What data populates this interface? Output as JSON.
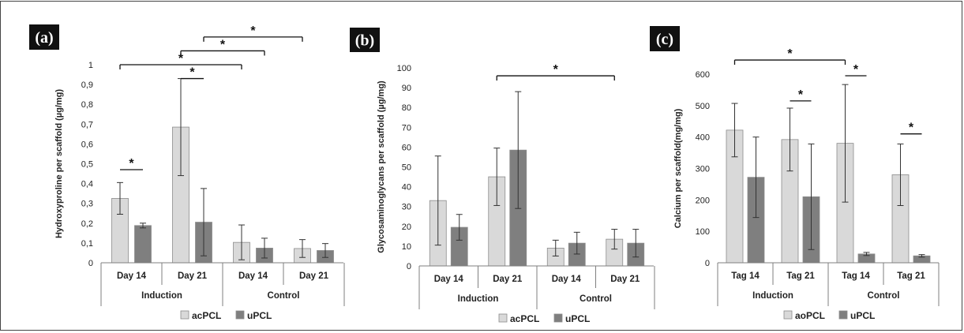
{
  "colors": {
    "series1": "#d9d9d9",
    "series2": "#7f7f7f",
    "bar_stroke": "#8c8c8c",
    "axis": "#7f7f7f",
    "label_box": "#111111"
  },
  "chart_data": [
    {
      "type": "bar",
      "panel_label": "(a)",
      "ylabel": "Hydroxyproline per scaffold (µg/mg)",
      "ylim": [
        0,
        1
      ],
      "yticks": [
        "0",
        "0,1",
        "0,2",
        "0,3",
        "0,4",
        "0,5",
        "0,6",
        "0,7",
        "0,8",
        "0,9",
        "1"
      ],
      "categories": [
        "Day 14",
        "Day 21",
        "Day 14",
        "Day 21"
      ],
      "groups": [
        {
          "label": "Induction",
          "categories": [
            0,
            1
          ]
        },
        {
          "label": "Control",
          "categories": [
            2,
            3
          ]
        }
      ],
      "series": [
        {
          "name": "acPCL",
          "values": [
            0.325,
            0.685,
            0.103,
            0.072
          ],
          "errors": [
            0.08,
            0.245,
            0.088,
            0.045
          ]
        },
        {
          "name": "uPCL",
          "values": [
            0.188,
            0.205,
            0.074,
            0.062
          ],
          "errors": [
            0.012,
            0.17,
            0.05,
            0.035
          ]
        }
      ],
      "significance": [
        {
          "from": [
            0,
            0
          ],
          "to": [
            0,
            1
          ],
          "y": 0.47,
          "label": "*"
        },
        {
          "from": [
            1,
            0
          ],
          "to": [
            1,
            1
          ],
          "y": 0.93,
          "label": "*"
        },
        {
          "from": [
            0,
            0
          ],
          "to": [
            2,
            0
          ],
          "y": 1.0,
          "label": "*"
        },
        {
          "from": [
            1,
            0
          ],
          "to": [
            2,
            1
          ],
          "y": 1.07,
          "label": "*"
        },
        {
          "from": [
            1,
            1
          ],
          "to": [
            3,
            0
          ],
          "y": 1.14,
          "label": "*"
        }
      ],
      "legend_position": "bottom"
    },
    {
      "type": "bar",
      "panel_label": "(b)",
      "ylabel": "Glycosaminoglycans per scaffold (µg/mg)",
      "ylim": [
        0,
        100
      ],
      "yticks": [
        "0",
        "10",
        "20",
        "30",
        "40",
        "50",
        "60",
        "70",
        "80",
        "90",
        "100"
      ],
      "categories": [
        "Day 14",
        "Day 21",
        "Day 14",
        "Day 21"
      ],
      "groups": [
        {
          "label": "Induction",
          "categories": [
            0,
            1
          ]
        },
        {
          "label": "Control",
          "categories": [
            2,
            3
          ]
        }
      ],
      "series": [
        {
          "name": "acPCL",
          "values": [
            33,
            45,
            9,
            13.5
          ],
          "errors": [
            22.5,
            14.5,
            4,
            5
          ]
        },
        {
          "name": "uPCL",
          "values": [
            19.5,
            58.5,
            11.5,
            11.5
          ],
          "errors": [
            6.5,
            29.5,
            5.5,
            7
          ]
        }
      ],
      "significance": [
        {
          "from": [
            1,
            0
          ],
          "to": [
            3,
            0
          ],
          "y": 96,
          "label": "*"
        }
      ],
      "legend_position": "bottom"
    },
    {
      "type": "bar",
      "panel_label": "(c)",
      "ylabel": "Calcium per scaffold(mg/mg)",
      "ylim": [
        0,
        600
      ],
      "yticks": [
        "0",
        "100",
        "200",
        "300",
        "400",
        "500",
        "600"
      ],
      "categories": [
        "Tag 14",
        "Tag 21",
        "Tag 14",
        "Tag 21"
      ],
      "groups": [
        {
          "label": "Induction",
          "categories": [
            0,
            1
          ]
        },
        {
          "label": "Control",
          "categories": [
            2,
            3
          ]
        }
      ],
      "series": [
        {
          "name": "aoPCL",
          "values": [
            422,
            392,
            380,
            280
          ],
          "errors": [
            85,
            100,
            187,
            98
          ]
        },
        {
          "name": "uPCL",
          "values": [
            272,
            210,
            28,
            22
          ],
          "errors": [
            128,
            168,
            5,
            4
          ]
        }
      ],
      "significance": [
        {
          "from": [
            1,
            0
          ],
          "to": [
            1,
            1
          ],
          "y": 515,
          "label": "*"
        },
        {
          "from": [
            2,
            0
          ],
          "to": [
            2,
            1
          ],
          "y": 595,
          "label": "*"
        },
        {
          "from": [
            3,
            0
          ],
          "to": [
            3,
            1
          ],
          "y": 410,
          "label": "*"
        },
        {
          "from": [
            0,
            0
          ],
          "to": [
            2,
            0
          ],
          "y": 645,
          "label": "*"
        }
      ],
      "legend_position": "bottom"
    }
  ]
}
